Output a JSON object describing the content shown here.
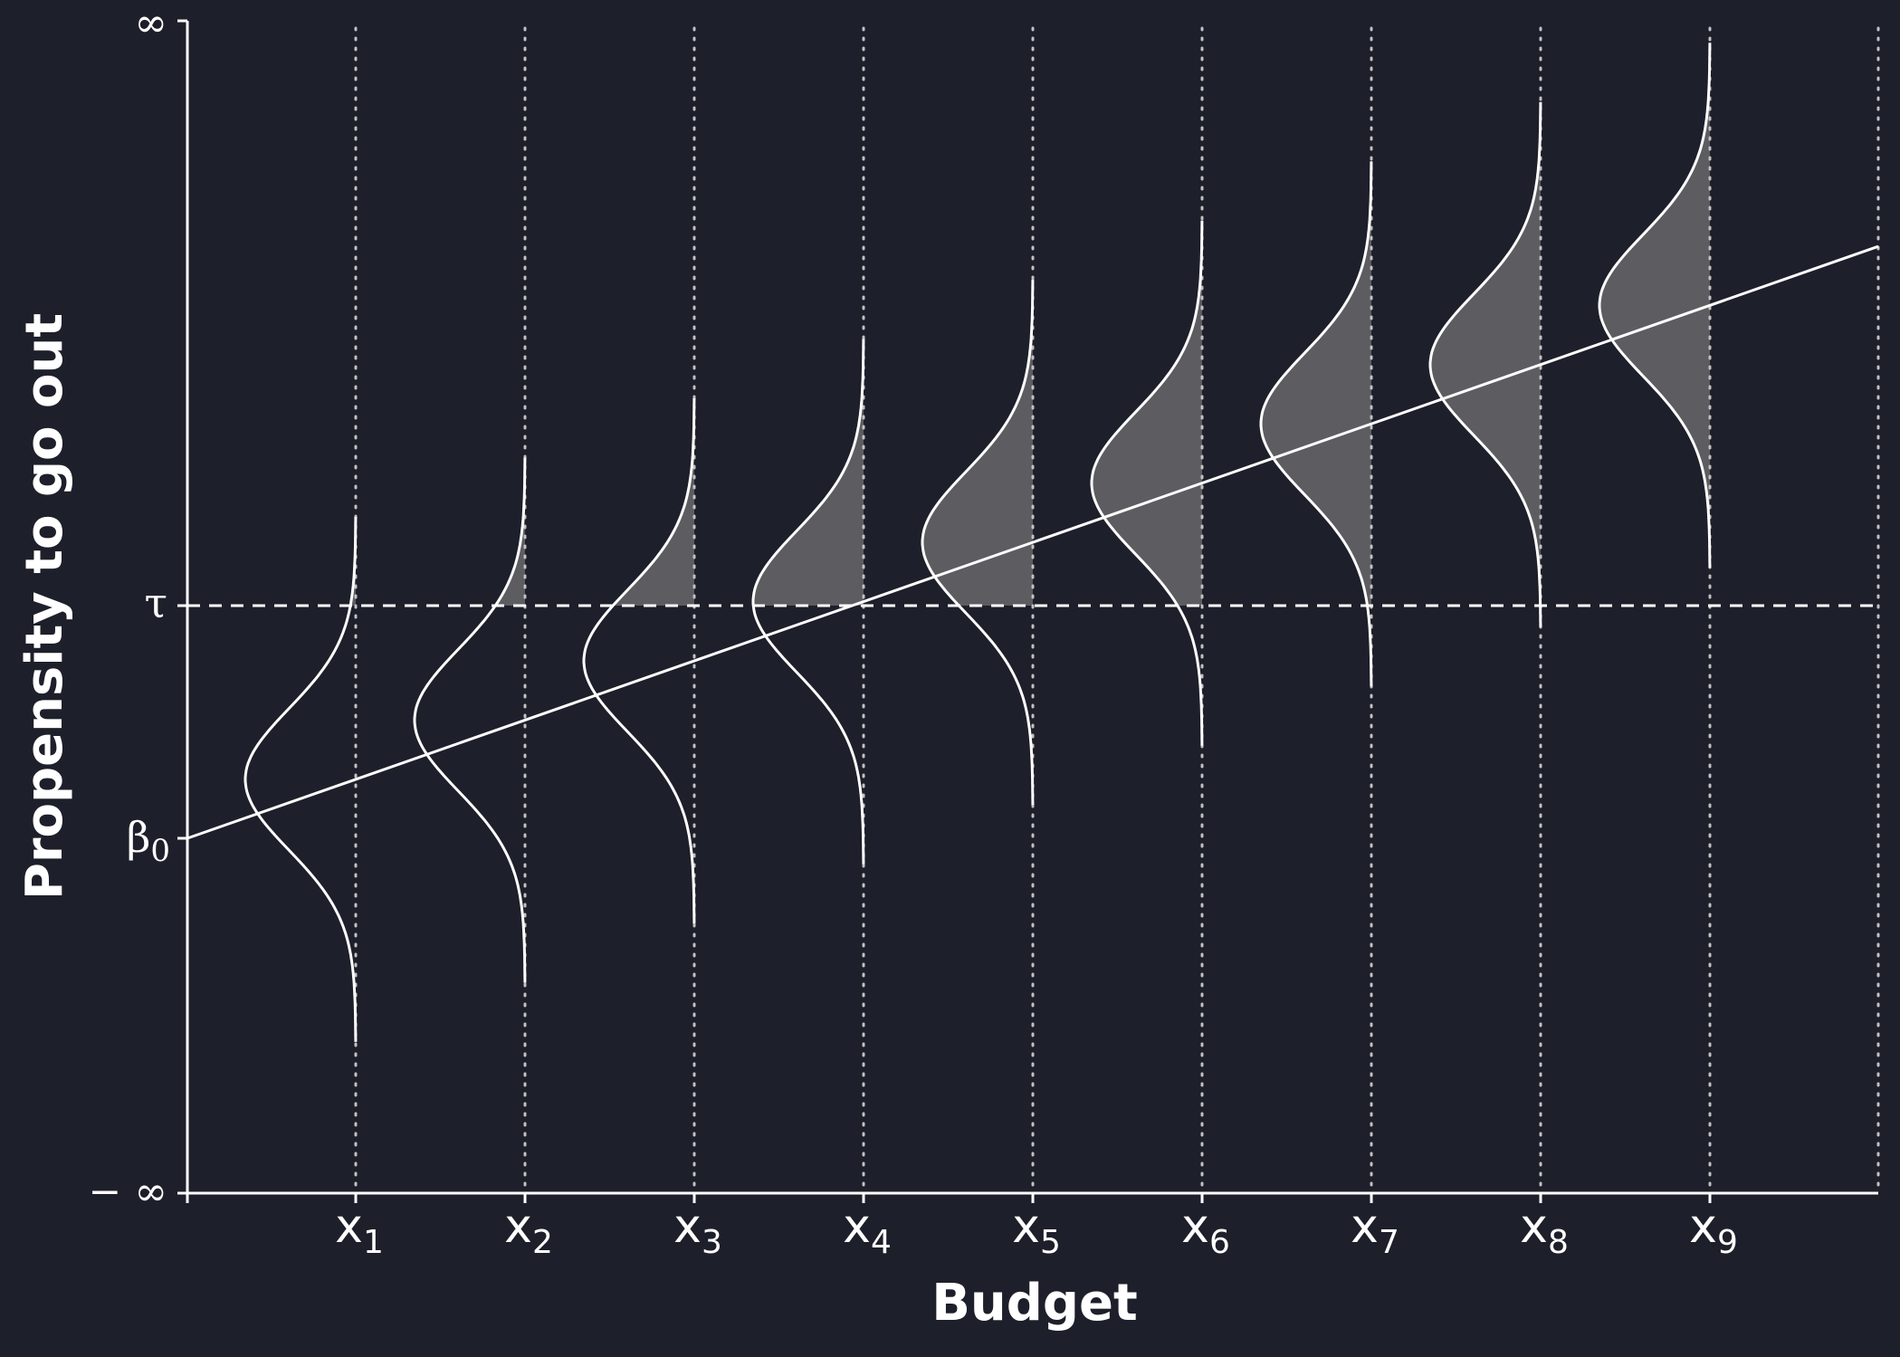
{
  "colors": {
    "background": "#1d1f2a",
    "foreground": "#ffffff",
    "shade": "#5c5c61",
    "guide": "#c2c2c2"
  },
  "axes": {
    "xlabel": "Budget",
    "ylabel": "Propensity to go out",
    "ytick_top": "∞",
    "ytick_bottom": "− ∞",
    "threshold_symbol": "τ",
    "intercept_symbol": "β",
    "intercept_subscript": "0"
  },
  "x_ticks": [
    {
      "base": "x",
      "sub": "1"
    },
    {
      "base": "x",
      "sub": "2"
    },
    {
      "base": "x",
      "sub": "3"
    },
    {
      "base": "x",
      "sub": "4"
    },
    {
      "base": "x",
      "sub": "5"
    },
    {
      "base": "x",
      "sub": "6"
    },
    {
      "base": "x",
      "sub": "7"
    },
    {
      "base": "x",
      "sub": "8"
    },
    {
      "base": "x",
      "sub": "9"
    }
  ],
  "chart_data": {
    "type": "line",
    "description_kind": "latent-variable threshold diagram",
    "regression_line": {
      "intercept_label": "β0",
      "extends_to_right_edge": true
    },
    "threshold_label": "τ",
    "threshold_style": "dashed",
    "guides_style": "dotted",
    "distributions": {
      "count": 9,
      "shape": "normal",
      "orientation": "vertical, opening left",
      "shaded_region": "above τ"
    },
    "grid": false,
    "legend": "none"
  }
}
